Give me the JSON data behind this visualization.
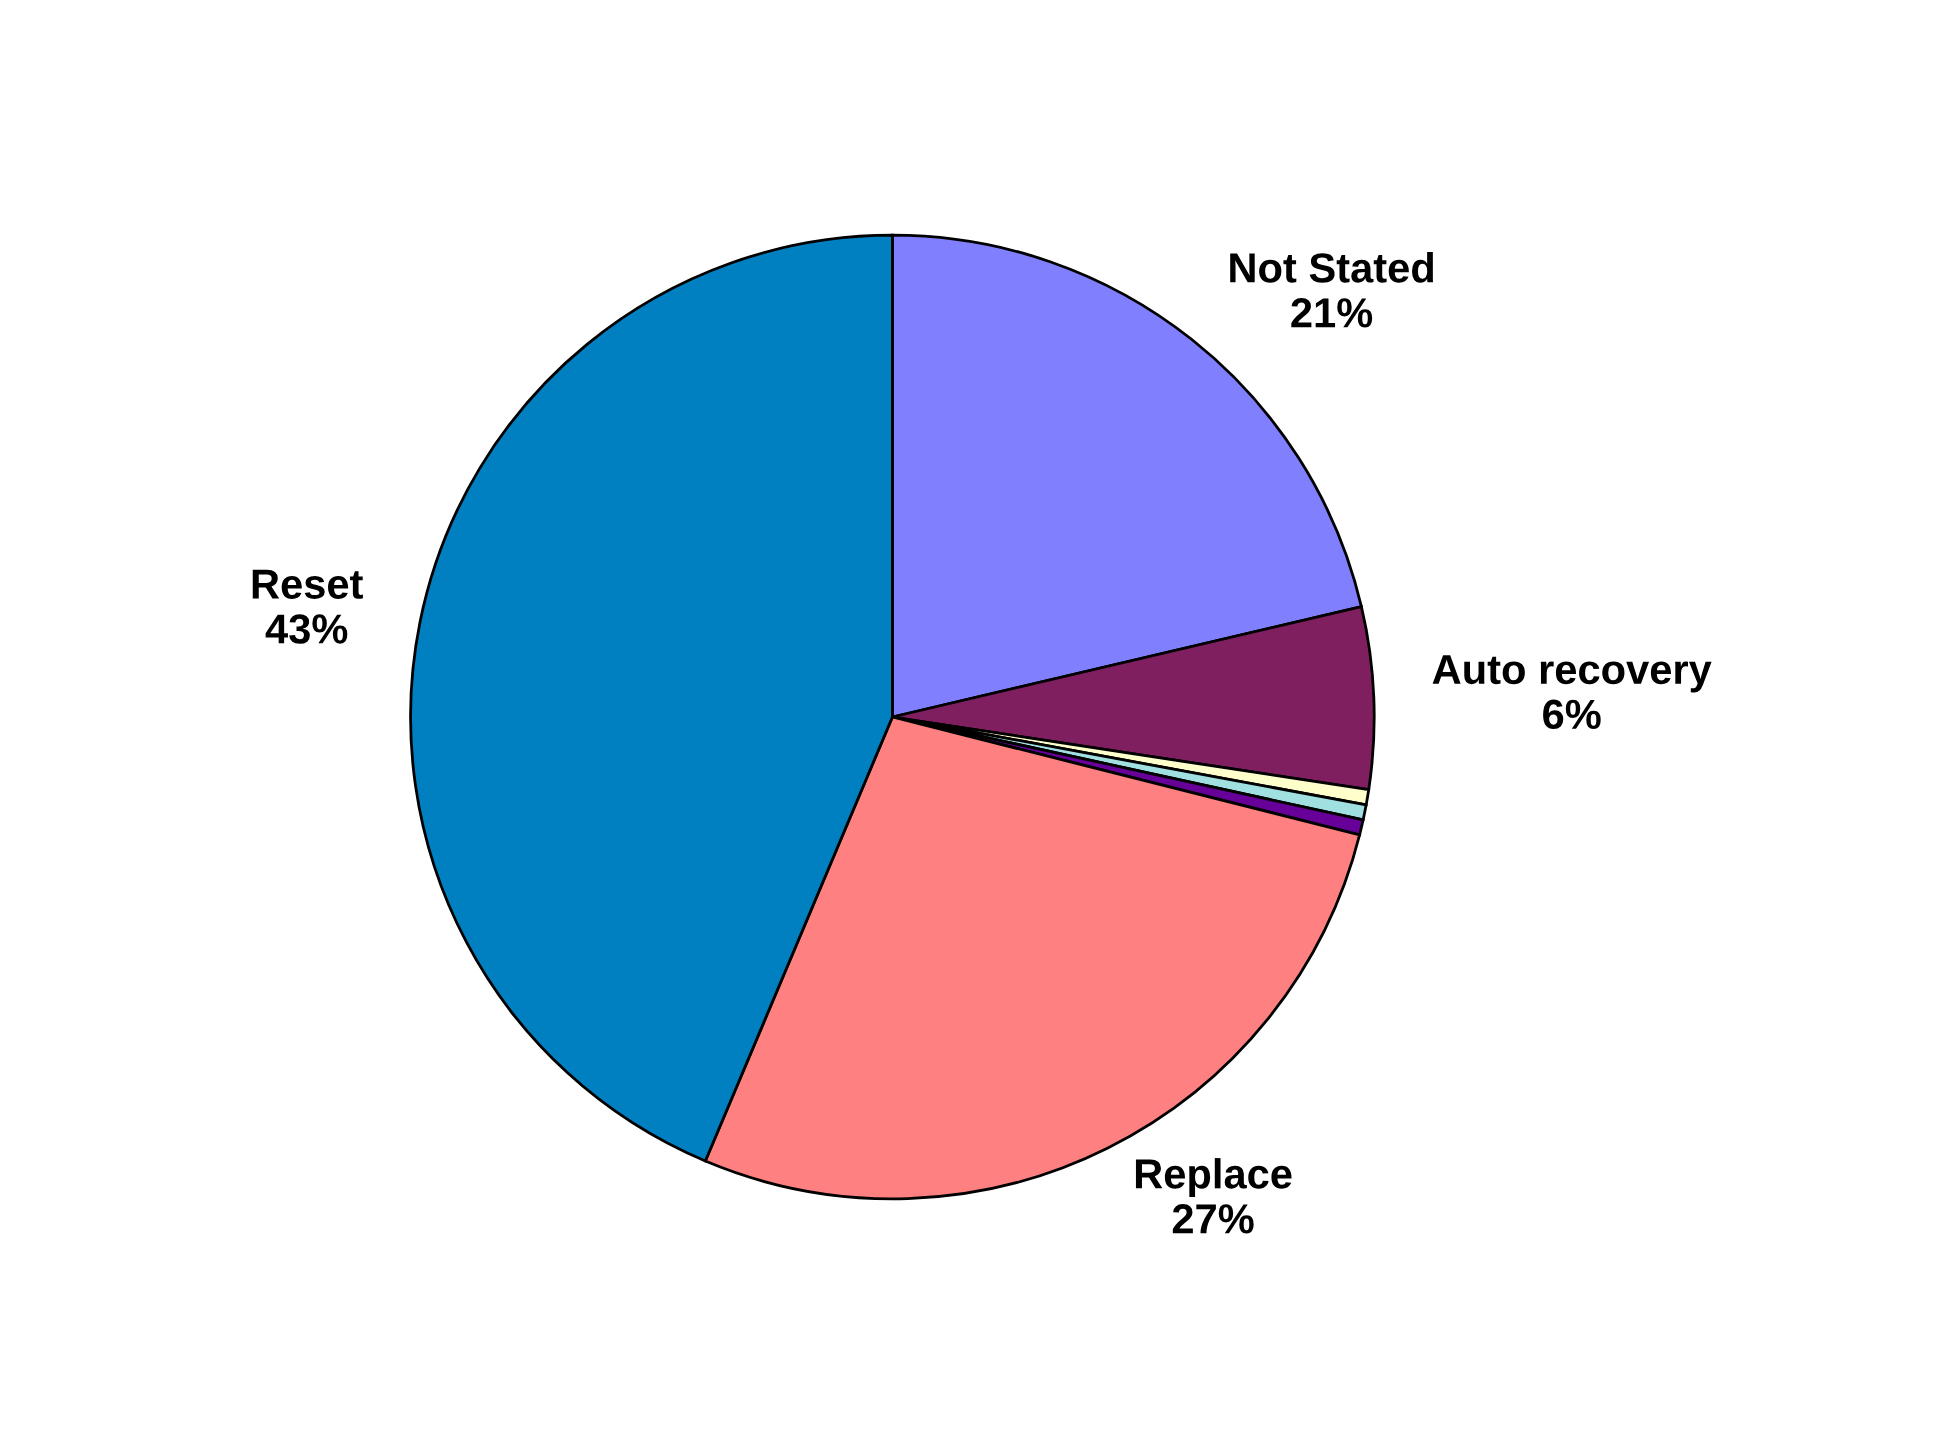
{
  "chart_data": {
    "type": "pie",
    "categories": [
      "Not Stated",
      "Auto recovery",
      null,
      null,
      null,
      "Replace",
      "Reset"
    ],
    "values": [
      21,
      6,
      0.5,
      0.5,
      0.5,
      27,
      43
    ],
    "value_labels": [
      "21%",
      "6%",
      null,
      null,
      null,
      "27%",
      "43%"
    ],
    "colors": [
      "#8080ff",
      "#7f1f5f",
      "#ffffcc",
      "#a0e0e0",
      "#660099",
      "#ff8080",
      "#0080c0"
    ],
    "legend": false
  }
}
